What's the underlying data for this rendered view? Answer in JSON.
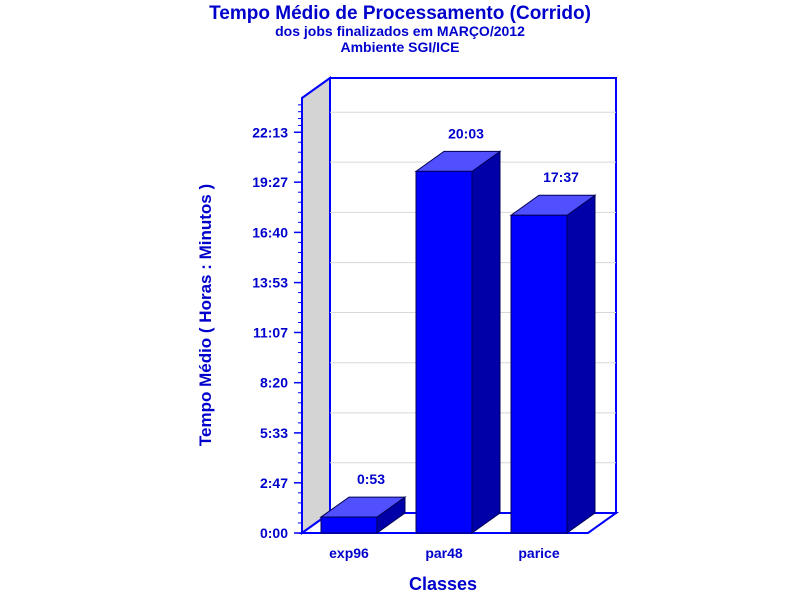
{
  "colors": {
    "text": "#0000cc",
    "axis": "#0000ff",
    "bar_front": "#0000ff",
    "bar_top": "#5050ff",
    "bar_side": "#0000a8",
    "left_wall": "#d4d4d4",
    "grid": "#d8d8d8"
  },
  "chart_data": {
    "type": "bar",
    "title": "Tempo Médio de Processamento (Corrido)",
    "subtitle": "dos jobs finalizados em MARÇO/2012",
    "subtitle2": "Ambiente SGI/ICE",
    "xlabel": "Classes",
    "ylabel": "Tempo Médio ( Horas : Minutos )",
    "categories": [
      "exp96",
      "par48",
      "parice"
    ],
    "values": [
      53,
      1203,
      1057
    ],
    "value_labels": [
      "0:53",
      "20:03",
      "17:37"
    ],
    "ylim": [
      0,
      1447
    ],
    "yticks": [
      {
        "value": 0,
        "label": "0:00"
      },
      {
        "value": 167,
        "label": "2:47"
      },
      {
        "value": 333,
        "label": "5:33"
      },
      {
        "value": 500,
        "label": "8:20"
      },
      {
        "value": 667,
        "label": "11:07"
      },
      {
        "value": 833,
        "label": "13:53"
      },
      {
        "value": 1000,
        "label": "16:40"
      },
      {
        "value": 1167,
        "label": "19:27"
      },
      {
        "value": 1333,
        "label": "22:13"
      }
    ],
    "grid": true,
    "legend": "none"
  }
}
